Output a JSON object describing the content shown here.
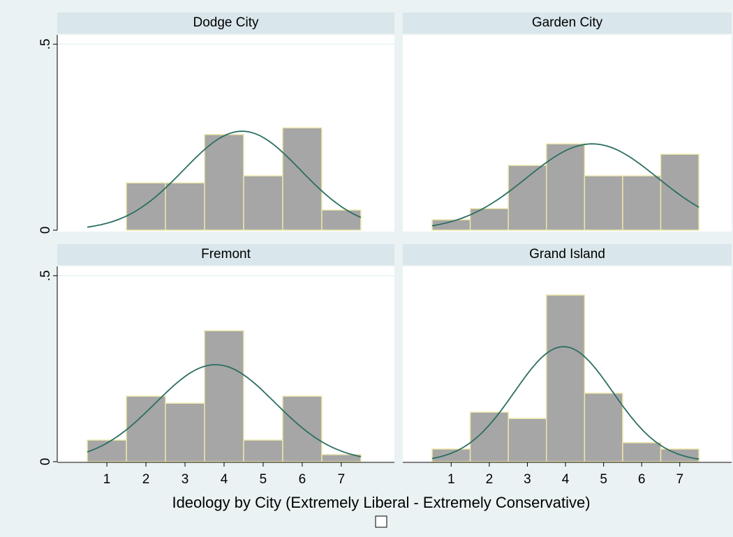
{
  "chart_data": [
    {
      "type": "histogram",
      "title": "Dodge City",
      "bins": [
        0.5,
        1.5,
        2.5,
        3.5,
        4.5,
        5.5,
        6.5,
        7.5
      ],
      "values": [
        0,
        0.127,
        0.127,
        0.257,
        0.146,
        0.275,
        0.054
      ],
      "color": "#a6a6a6",
      "normal": {
        "mean": 4.46,
        "sd": 1.5,
        "color": "#2b6e62"
      },
      "xlim": [
        -0.27,
        8.36
      ],
      "ylim": [
        0,
        0.525
      ],
      "yticks": [
        0,
        {
          "value": 0.5,
          "label": ".5"
        }
      ]
    },
    {
      "type": "histogram",
      "title": "Garden City",
      "bins": [
        0.5,
        1.5,
        2.5,
        3.5,
        4.5,
        5.5,
        6.5,
        7.5
      ],
      "values": [
        0.028,
        0.058,
        0.174,
        0.232,
        0.146,
        0.146,
        0.204
      ],
      "color": "#a6a6a6",
      "normal": {
        "mean": 4.7,
        "sd": 1.72,
        "color": "#2b6e62"
      },
      "xlim": [
        -0.27,
        8.36
      ],
      "ylim": [
        0,
        0.525
      ]
    },
    {
      "type": "histogram",
      "title": "Fremont",
      "bins": [
        0.5,
        1.5,
        2.5,
        3.5,
        4.5,
        5.5,
        6.5,
        7.5
      ],
      "values": [
        0.058,
        0.176,
        0.157,
        0.352,
        0.058,
        0.176,
        0.019
      ],
      "color": "#a6a6a6",
      "normal": {
        "mean": 3.78,
        "sd": 1.53,
        "color": "#2b6e62"
      },
      "xlim": [
        -0.27,
        8.36
      ],
      "ylim": [
        0,
        0.525
      ],
      "xticks": [
        1,
        2,
        3,
        4,
        5,
        6,
        7
      ],
      "yticks": [
        0,
        {
          "value": 0.5,
          "label": ".5"
        }
      ]
    },
    {
      "type": "histogram",
      "title": "Grand Island",
      "bins": [
        0.5,
        1.5,
        2.5,
        3.5,
        4.5,
        5.5,
        6.5,
        7.5
      ],
      "values": [
        0.034,
        0.133,
        0.116,
        0.448,
        0.184,
        0.051,
        0.034
      ],
      "color": "#a6a6a6",
      "normal": {
        "mean": 3.95,
        "sd": 1.29,
        "color": "#2b6e62"
      },
      "xlim": [
        -0.27,
        8.36
      ],
      "ylim": [
        0,
        0.525
      ],
      "xticks": [
        1,
        2,
        3,
        4,
        5,
        6,
        7
      ]
    }
  ],
  "xlabel": "Ideology by City (Extremely Liberal - Extremely Conservative)"
}
